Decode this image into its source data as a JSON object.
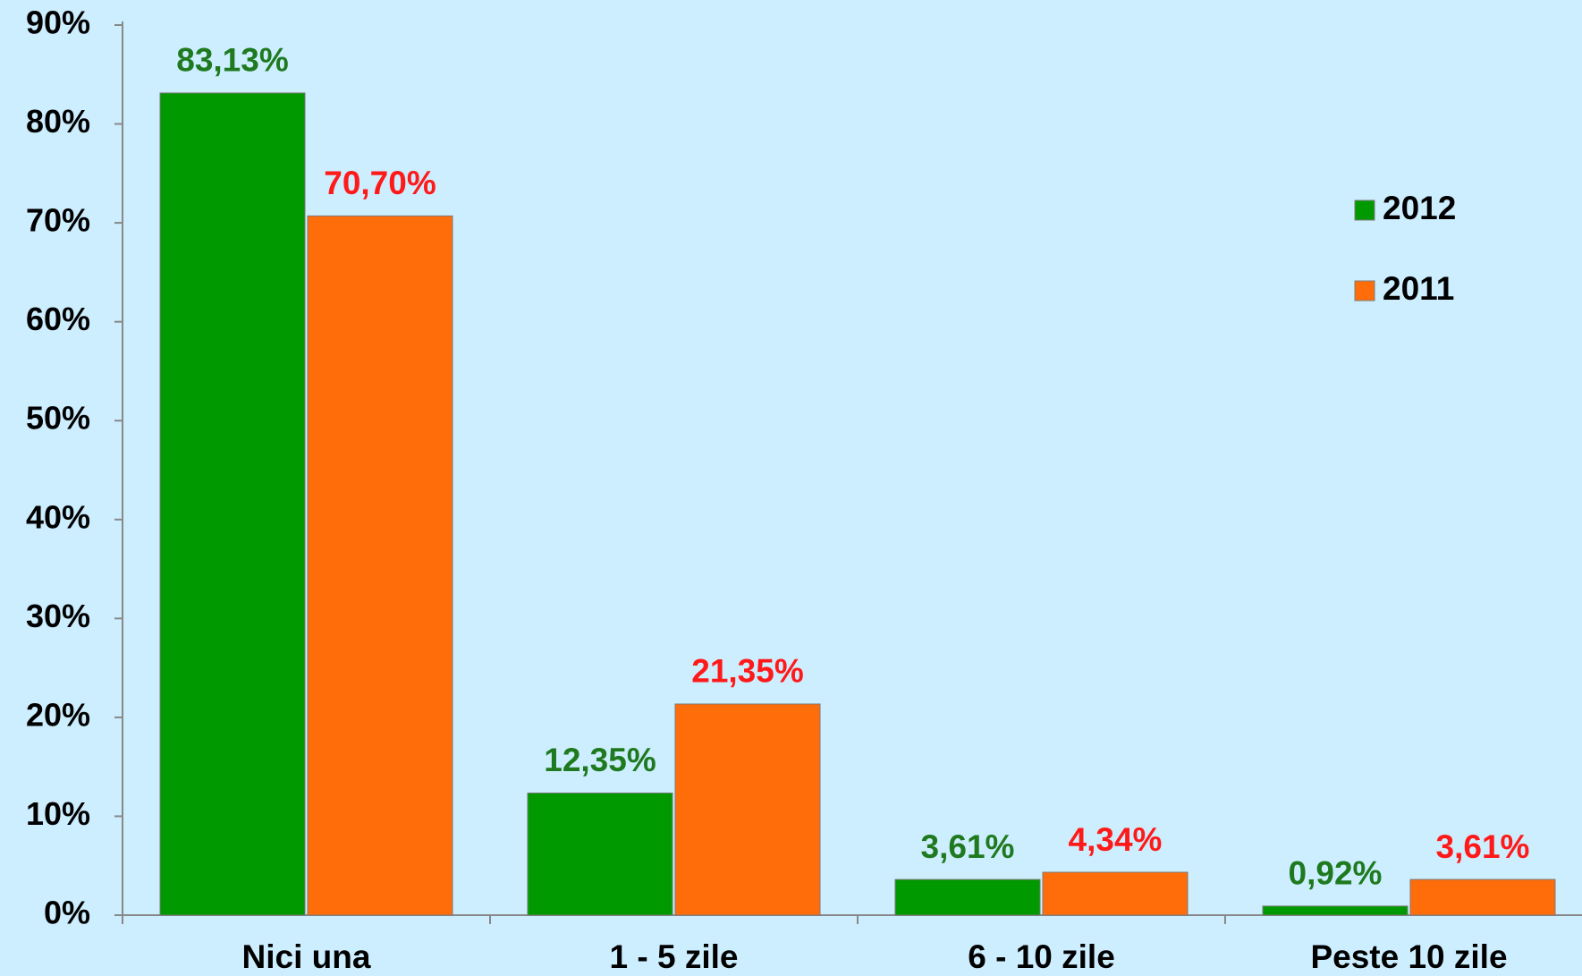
{
  "chart_data": {
    "type": "bar",
    "categories": [
      "Nici una",
      "1 - 5 zile",
      "6 - 10 zile",
      "Peste 10 zile"
    ],
    "series": [
      {
        "name": "2012",
        "color": "#009a00",
        "label_color": "#1f7a1f",
        "values": [
          83.13,
          12.35,
          3.61,
          0.92
        ],
        "value_labels": [
          "83,13%",
          "12,35%",
          "3,61%",
          "0,92%"
        ]
      },
      {
        "name": "2011",
        "color": "#ff6d0a",
        "label_color": "#ff1a1a",
        "values": [
          70.7,
          21.35,
          4.34,
          3.61
        ],
        "value_labels": [
          "70,70%",
          "21,35%",
          "4,34%",
          "3,61%"
        ]
      }
    ],
    "ylim": [
      0,
      90
    ],
    "yticks": [
      {
        "value": 0,
        "label": "0%"
      },
      {
        "value": 10,
        "label": "10%"
      },
      {
        "value": 20,
        "label": "20%"
      },
      {
        "value": 30,
        "label": "30%"
      },
      {
        "value": 40,
        "label": "40%"
      },
      {
        "value": 50,
        "label": "50%"
      },
      {
        "value": 60,
        "label": "60%"
      },
      {
        "value": 70,
        "label": "70%"
      },
      {
        "value": 80,
        "label": "80%"
      },
      {
        "value": 90,
        "label": "90%"
      }
    ],
    "legend": "right"
  }
}
